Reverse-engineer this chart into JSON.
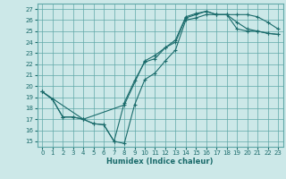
{
  "xlabel": "Humidex (Indice chaleur)",
  "bg_color": "#cce8e8",
  "grid_color": "#5fa8a8",
  "line_color": "#1a6b6b",
  "xlim": [
    -0.5,
    23.5
  ],
  "ylim": [
    14.5,
    27.5
  ],
  "xticks": [
    0,
    1,
    2,
    3,
    4,
    5,
    6,
    7,
    8,
    9,
    10,
    11,
    12,
    13,
    14,
    15,
    16,
    17,
    18,
    19,
    20,
    21,
    22,
    23
  ],
  "yticks": [
    15,
    16,
    17,
    18,
    19,
    20,
    21,
    22,
    23,
    24,
    25,
    26,
    27
  ],
  "line1_x": [
    0,
    1,
    2,
    3,
    4,
    5,
    6,
    7,
    8,
    9,
    10,
    11,
    12,
    13,
    14,
    15,
    16,
    17,
    18,
    19,
    20,
    21,
    22,
    23
  ],
  "line1_y": [
    19.5,
    18.8,
    17.2,
    17.2,
    17.0,
    16.6,
    16.5,
    15.0,
    14.8,
    18.3,
    20.6,
    21.2,
    22.3,
    23.3,
    26.0,
    26.2,
    26.5,
    26.5,
    26.5,
    25.8,
    25.2,
    25.0,
    24.8,
    24.7
  ],
  "line2_x": [
    0,
    4,
    8,
    10,
    11,
    12,
    13,
    14,
    15,
    16,
    17,
    18,
    19,
    20,
    21,
    22,
    23
  ],
  "line2_y": [
    19.5,
    17.0,
    18.3,
    22.3,
    22.8,
    23.5,
    24.2,
    26.3,
    26.6,
    26.8,
    26.5,
    26.5,
    26.5,
    26.5,
    26.3,
    25.8,
    25.2
  ],
  "line3_x": [
    0,
    1,
    2,
    3,
    4,
    5,
    6,
    7,
    8,
    9,
    10,
    11,
    12,
    13,
    14,
    15,
    16,
    17,
    18,
    19,
    20,
    21,
    22,
    23
  ],
  "line3_y": [
    19.5,
    18.8,
    17.2,
    17.2,
    17.0,
    16.6,
    16.5,
    15.0,
    18.5,
    20.5,
    22.2,
    22.5,
    23.5,
    24.0,
    26.2,
    26.5,
    26.8,
    26.5,
    26.5,
    25.2,
    25.0,
    25.0,
    24.8,
    24.7
  ]
}
